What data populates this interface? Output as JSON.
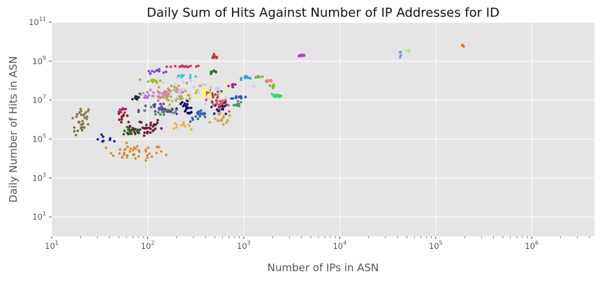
{
  "chart_data": {
    "type": "scatter",
    "title": "Daily Sum of Hits Against Number of IP Addresses for ID",
    "xlabel": "Number of IPs in ASN",
    "ylabel": "Daily Number of Hits in ASN",
    "x_scale": "log",
    "y_scale": "log",
    "xlim": [
      10,
      4500000
    ],
    "ylim": [
      1,
      100000000000
    ],
    "x_ticks": [
      {
        "base": "10",
        "exp": "1",
        "value": 10
      },
      {
        "base": "10",
        "exp": "2",
        "value": 100
      },
      {
        "base": "10",
        "exp": "3",
        "value": 1000
      },
      {
        "base": "10",
        "exp": "4",
        "value": 10000
      },
      {
        "base": "10",
        "exp": "5",
        "value": 100000
      },
      {
        "base": "10",
        "exp": "6",
        "value": 1000000
      }
    ],
    "y_ticks": [
      {
        "base": "10",
        "exp": "1",
        "value": 10
      },
      {
        "base": "10",
        "exp": "3",
        "value": 1000
      },
      {
        "base": "10",
        "exp": "5",
        "value": 100000
      },
      {
        "base": "10",
        "exp": "7",
        "value": 10000000
      },
      {
        "base": "10",
        "exp": "9",
        "value": 1000000000
      },
      {
        "base": "10",
        "exp": "11",
        "value": 100000000000
      }
    ],
    "grid": true,
    "legend": "none",
    "background_color": "#e5e5e5",
    "grid_color": "#ffffff",
    "clusters": [
      {
        "color": "#8b7a4a",
        "x": 21,
        "y": 1600000,
        "sx": 0.05,
        "sy": 0.25,
        "n": 22
      },
      {
        "color": "#7b6b3e",
        "x": 20,
        "y": 300000,
        "sx": 0.04,
        "sy": 0.2,
        "n": 10
      },
      {
        "color": "#1f1fa8",
        "x": 38,
        "y": 100000,
        "sx": 0.05,
        "sy": 0.15,
        "n": 8
      },
      {
        "color": "#d98b2b",
        "x": 75,
        "y": 20000,
        "sx": 0.15,
        "sy": 0.2,
        "n": 40
      },
      {
        "color": "#2e5e1e",
        "x": 70,
        "y": 250000,
        "sx": 0.05,
        "sy": 0.1,
        "n": 30
      },
      {
        "color": "#6a1b3a",
        "x": 90,
        "y": 400000,
        "sx": 0.1,
        "sy": 0.25,
        "n": 35
      },
      {
        "color": "#8b1a1a",
        "x": 55,
        "y": 1500000,
        "sx": 0.04,
        "sy": 0.15,
        "n": 8
      },
      {
        "color": "#b0206a",
        "x": 58,
        "y": 3000000,
        "sx": 0.03,
        "sy": 0.1,
        "n": 8
      },
      {
        "color": "#1e2f3a",
        "x": 75,
        "y": 15000000,
        "sx": 0.03,
        "sy": 0.1,
        "n": 10
      },
      {
        "color": "#a0b820",
        "x": 115,
        "y": 100000000,
        "sx": 0.04,
        "sy": 0.05,
        "n": 12
      },
      {
        "color": "#7a4ad9",
        "x": 120,
        "y": 300000000,
        "sx": 0.05,
        "sy": 0.05,
        "n": 12
      },
      {
        "color": "#c070e0",
        "x": 100,
        "y": 15000000,
        "sx": 0.04,
        "sy": 0.1,
        "n": 10
      },
      {
        "color": "#e03050",
        "x": 230,
        "y": 550000000,
        "sx": 0.08,
        "sy": 0.03,
        "n": 15
      },
      {
        "color": "#40c0e0",
        "x": 230,
        "y": 170000000,
        "sx": 0.05,
        "sy": 0.05,
        "n": 12
      },
      {
        "color": "#b0b030",
        "x": 200,
        "y": 20000000,
        "sx": 0.12,
        "sy": 0.25,
        "n": 40
      },
      {
        "color": "#e070c0",
        "x": 160,
        "y": 25000000,
        "sx": 0.1,
        "sy": 0.1,
        "n": 20
      },
      {
        "color": "#00007a",
        "x": 250,
        "y": 4000000,
        "sx": 0.06,
        "sy": 0.15,
        "n": 18
      },
      {
        "color": "#f0b040",
        "x": 220,
        "y": 500000,
        "sx": 0.05,
        "sy": 0.08,
        "n": 12
      },
      {
        "color": "#2a6ab0",
        "x": 350,
        "y": 1500000,
        "sx": 0.05,
        "sy": 0.15,
        "n": 18
      },
      {
        "color": "#5a8a60",
        "x": 150,
        "y": 3000000,
        "sx": 0.1,
        "sy": 0.2,
        "n": 25
      },
      {
        "color": "#d03030",
        "x": 500,
        "y": 1600000000,
        "sx": 0.02,
        "sy": 0.05,
        "n": 10
      },
      {
        "color": "#a04040",
        "x": 470,
        "y": 20000000,
        "sx": 0.06,
        "sy": 0.1,
        "n": 15
      },
      {
        "color": "#202060",
        "x": 550,
        "y": 4000000,
        "sx": 0.05,
        "sy": 0.2,
        "n": 25
      },
      {
        "color": "#d0a040",
        "x": 600,
        "y": 1000000,
        "sx": 0.05,
        "sy": 0.15,
        "n": 15
      },
      {
        "color": "#2e6e2e",
        "x": 480,
        "y": 250000000,
        "sx": 0.03,
        "sy": 0.05,
        "n": 8
      },
      {
        "color": "#30a0e0",
        "x": 1100,
        "y": 150000000,
        "sx": 0.03,
        "sy": 0.05,
        "n": 10
      },
      {
        "color": "#80b040",
        "x": 1400,
        "y": 150000000,
        "sx": 0.02,
        "sy": 0.05,
        "n": 6
      },
      {
        "color": "#e08080",
        "x": 1900,
        "y": 100000000,
        "sx": 0.03,
        "sy": 0.03,
        "n": 10
      },
      {
        "color": "#9ab020",
        "x": 2000,
        "y": 50000000,
        "sx": 0.01,
        "sy": 0.05,
        "n": 5
      },
      {
        "color": "#20e070",
        "x": 2200,
        "y": 18000000,
        "sx": 0.03,
        "sy": 0.05,
        "n": 12
      },
      {
        "color": "#a02080",
        "x": 770,
        "y": 55000000,
        "sx": 0.02,
        "sy": 0.05,
        "n": 6
      },
      {
        "color": "#20b060",
        "x": 900,
        "y": 6000000,
        "sx": 0.03,
        "sy": 0.05,
        "n": 8
      },
      {
        "color": "#3050c0",
        "x": 900,
        "y": 14000000,
        "sx": 0.05,
        "sy": 0.03,
        "n": 10
      },
      {
        "color": "#b040c0",
        "x": 4000,
        "y": 2000000000,
        "sx": 0.02,
        "sy": 0.03,
        "n": 12
      },
      {
        "color": "#7aa0e0",
        "x": 43000,
        "y": 2500000000,
        "sx": 0.005,
        "sy": 0.05,
        "n": 6
      },
      {
        "color": "#b0f080",
        "x": 52000,
        "y": 3600000000,
        "sx": 0.01,
        "sy": 0.03,
        "n": 6
      },
      {
        "color": "#e07010",
        "x": 190000,
        "y": 6500000000,
        "sx": 0.005,
        "sy": 0.03,
        "n": 5
      },
      {
        "color": "#c8c8f0",
        "x": 300,
        "y": 30000000,
        "sx": 0.2,
        "sy": 0.3,
        "n": 30
      },
      {
        "color": "#ffff40",
        "x": 400,
        "y": 25000000,
        "sx": 0.1,
        "sy": 0.2,
        "n": 15
      },
      {
        "color": "#6040a0",
        "x": 130,
        "y": 3000000,
        "sx": 0.1,
        "sy": 0.2,
        "n": 20
      },
      {
        "color": "#e05060",
        "x": 600,
        "y": 6000000,
        "sx": 0.1,
        "sy": 0.2,
        "n": 20
      }
    ]
  }
}
